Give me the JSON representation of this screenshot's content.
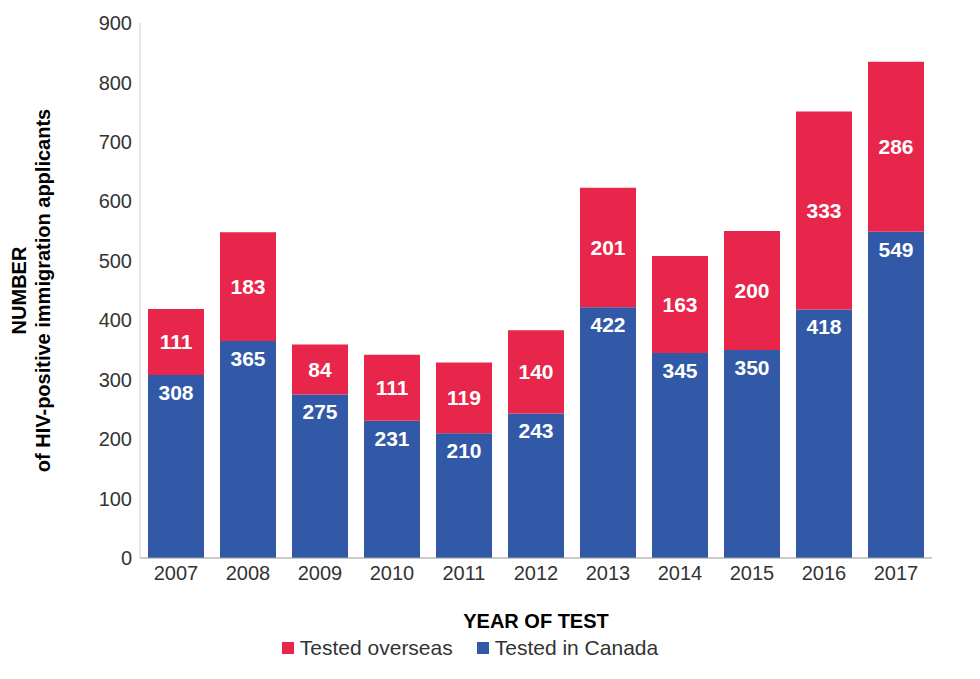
{
  "chart_data": {
    "type": "bar",
    "stacked": true,
    "data_labels": true,
    "grid": false,
    "legend": "bottom",
    "ylabel": [
      "NUMBER",
      "of HIV-positive immigration applicants"
    ],
    "xlabel": "YEAR OF TEST",
    "categories": [
      "2007",
      "2008",
      "2009",
      "2010",
      "2011",
      "2012",
      "2013",
      "2014",
      "2015",
      "2016",
      "2017"
    ],
    "series": [
      {
        "name": "Tested in Canada",
        "color": "#3159a8",
        "values": [
          308,
          365,
          275,
          231,
          210,
          243,
          422,
          345,
          350,
          418,
          549
        ]
      },
      {
        "name": "Tested overseas",
        "color": "#e8254a",
        "values": [
          111,
          183,
          84,
          111,
          119,
          140,
          201,
          163,
          200,
          333,
          286
        ]
      }
    ],
    "ylim": [
      0,
      900
    ],
    "yticks": [
      0,
      100,
      200,
      300,
      400,
      500,
      600,
      700,
      800,
      900
    ]
  }
}
